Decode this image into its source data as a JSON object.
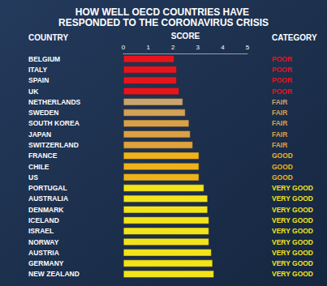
{
  "chart_data": {
    "type": "bar",
    "orientation": "horizontal",
    "title": "HOW WELL OECD COUNTRIES HAVE RESPONDED TO THE CORONAVIRUS CRISIS",
    "y_label": "COUNTRY",
    "x_label": "SCORE",
    "ratings_label": "CATEGORY",
    "categories": [
      "BELGIUM",
      "ITALY",
      "SPAIN",
      "UK",
      "NETHERLANDS",
      "SWEDEN",
      "SOUTH KOREA",
      "JAPAN",
      "SWITZERLAND",
      "FRANCE",
      "CHILE",
      "US",
      "PORTUGAL",
      "AUSTRALIA",
      "DENMARK",
      "ICELAND",
      "ISRAEL",
      "NORWAY",
      "AUSTRIA",
      "GERMANY",
      "NEW ZEALAND"
    ],
    "values": [
      2.05,
      2.15,
      2.15,
      2.25,
      2.4,
      2.5,
      2.65,
      2.7,
      2.8,
      3.05,
      3.05,
      3.05,
      3.25,
      3.4,
      3.4,
      3.45,
      3.45,
      3.45,
      3.55,
      3.6,
      3.65
    ],
    "ratings": [
      "POOR",
      "POOR",
      "POOR",
      "POOR",
      "FAIR",
      "FAIR",
      "FAIR",
      "FAIR",
      "FAIR",
      "GOOD",
      "GOOD",
      "GOOD",
      "VERY GOOD",
      "VERY GOOD",
      "VERY GOOD",
      "VERY GOOD",
      "VERY GOOD",
      "VERY GOOD",
      "VERY GOOD",
      "VERY GOOD",
      "VERY GOOD"
    ],
    "colors": [
      "#e8141b",
      "#e8141b",
      "#e8141b",
      "#e8141b",
      "#c9a56e",
      "#d3a256",
      "#d9a04a",
      "#dca044",
      "#e0a23c",
      "#f0b21a",
      "#f0b21a",
      "#f0b21a",
      "#f3e41a",
      "#f3e41a",
      "#f3e41a",
      "#f3e41a",
      "#f3e41a",
      "#f3e41a",
      "#f3e41a",
      "#f3e41a",
      "#f3e41a"
    ],
    "xlim": [
      0,
      5
    ],
    "xticks": [
      0,
      1,
      2,
      3,
      4,
      5
    ],
    "grid": false
  }
}
